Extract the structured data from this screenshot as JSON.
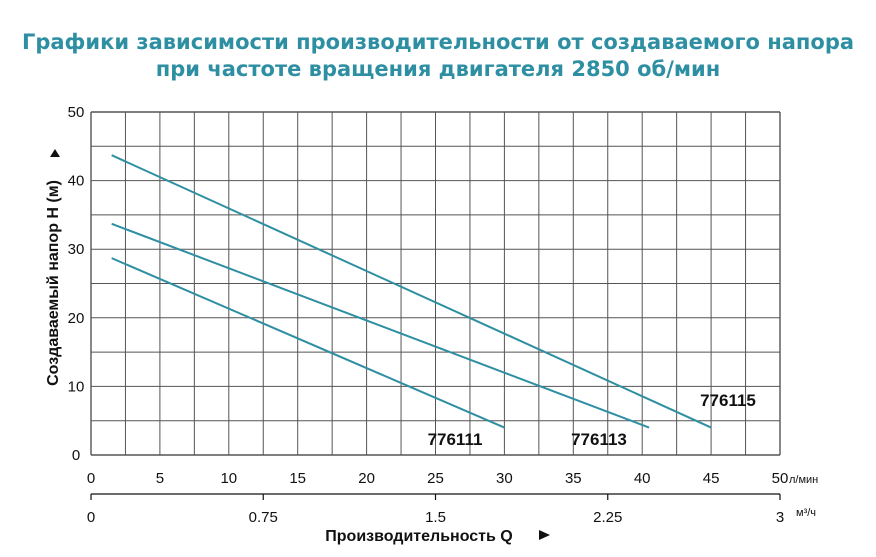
{
  "title": {
    "line1": "Графики зависимости производительности от создаваемого напора",
    "line2": "при частоте вращения двигателя 2850 об/мин"
  },
  "colors": {
    "title": "#2e8fa3",
    "curve": "#2e8fa3",
    "grid": "#555555"
  },
  "chart_data": {
    "type": "line",
    "ylabel": "Создаваемый напор H (м)",
    "xlabel": "Производительность Q",
    "x_unit": "л/мин",
    "x2_unit": "м³/ч",
    "xlim": [
      0,
      50
    ],
    "ylim": [
      0,
      50
    ],
    "grid": true,
    "y_ticks": [
      "0",
      "10",
      "20",
      "30",
      "40",
      "50"
    ],
    "x_ticks": [
      "0",
      "5",
      "10",
      "15",
      "20",
      "25",
      "30",
      "35",
      "40",
      "45",
      "50"
    ],
    "x2_ticks": [
      "0",
      "0.75",
      "1.5",
      "2.25",
      "3"
    ],
    "series": [
      {
        "name": "776111",
        "x": [
          1.5,
          30
        ],
        "y": [
          28.7,
          4
        ]
      },
      {
        "name": "776113",
        "x": [
          1.5,
          40.5
        ],
        "y": [
          33.7,
          4
        ]
      },
      {
        "name": "776115",
        "x": [
          1.5,
          45
        ],
        "y": [
          43.7,
          4
        ]
      }
    ]
  }
}
